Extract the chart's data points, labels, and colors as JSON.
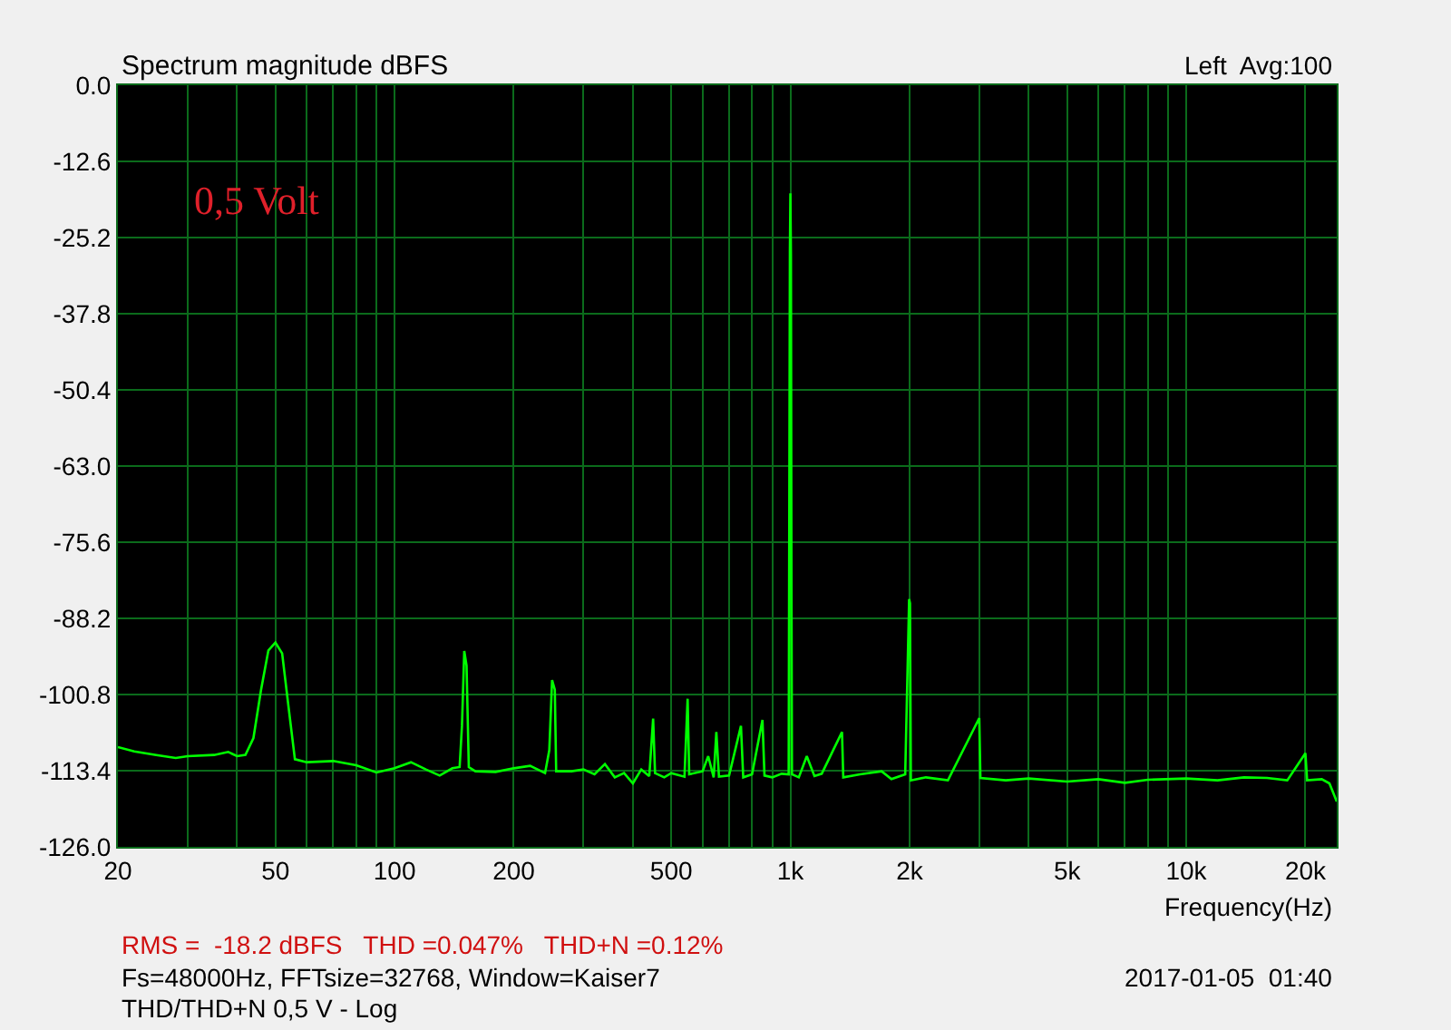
{
  "chart_data": {
    "type": "line",
    "title": "Spectrum magnitude dBFS",
    "subtitle": "Left  Avg:100",
    "xlabel": "Frequency(Hz)",
    "annotations": [
      "0,5 Volt",
      "RMS =  -18.2 dBFS   THD =0.047%   THD+N =0.12%",
      "Fs=48000Hz, FFTsize=32768, Window=Kaiser7",
      "2017-01-05  01:40",
      "THD/THD+N 0,5 V - Log"
    ],
    "log": "x",
    "grid": true,
    "legend": false,
    "marker": "none",
    "line_style": "solid",
    "xlim": [
      20,
      24000
    ],
    "ylim": [
      -126,
      0
    ],
    "xticks": [
      20,
      {
        "value": 30,
        "label": null
      },
      {
        "value": 40,
        "label": null
      },
      50,
      {
        "value": 60,
        "label": null
      },
      {
        "value": 70,
        "label": null
      },
      {
        "value": 80,
        "label": null
      },
      {
        "value": 90,
        "label": null
      },
      100,
      200,
      {
        "value": 300,
        "label": null
      },
      {
        "value": 400,
        "label": null
      },
      500,
      {
        "value": 600,
        "label": null
      },
      {
        "value": 700,
        "label": null
      },
      {
        "value": 800,
        "label": null
      },
      {
        "value": 900,
        "label": null
      },
      {
        "value": 1000,
        "label": "1k"
      },
      {
        "value": 2000,
        "label": "2k"
      },
      {
        "value": 3000,
        "label": null
      },
      {
        "value": 4000,
        "label": null
      },
      {
        "value": 5000,
        "label": "5k"
      },
      {
        "value": 6000,
        "label": null
      },
      {
        "value": 7000,
        "label": null
      },
      {
        "value": 8000,
        "label": null
      },
      {
        "value": 9000,
        "label": null
      },
      {
        "value": 10000,
        "label": "10k"
      },
      {
        "value": 20000,
        "label": "20k"
      }
    ],
    "yticks": [
      {
        "value": 0,
        "label": "0.0"
      },
      -12.6,
      -25.2,
      -37.8,
      -50.4,
      {
        "value": -63,
        "label": "-63.0"
      },
      -75.6,
      -88.2,
      -100.8,
      -113.4,
      {
        "value": -126,
        "label": "-126.0"
      }
    ],
    "series": [
      {
        "color": "#00ff00",
        "x": [
          20,
          22,
          25,
          28,
          30,
          35,
          38,
          40,
          42,
          44,
          46,
          48,
          50,
          52,
          54,
          56,
          60,
          70,
          80,
          90,
          100,
          110,
          120,
          130,
          140,
          146,
          148,
          150,
          152,
          154,
          160,
          180,
          200,
          220,
          240,
          246,
          250,
          254,
          256,
          280,
          300,
          320,
          340,
          360,
          380,
          400,
          420,
          440,
          450,
          455,
          480,
          500,
          540,
          550,
          555,
          600,
          620,
          640,
          650,
          660,
          700,
          750,
          760,
          800,
          850,
          860,
          900,
          950,
          990,
          997,
          1000,
          1003,
          1006,
          1009,
          1050,
          1100,
          1150,
          1200,
          1350,
          1360,
          1500,
          1700,
          1800,
          1950,
          1995,
          2005,
          2015,
          2200,
          2500,
          3000,
          3020,
          3500,
          4000,
          5000,
          6000,
          7000,
          8000,
          10000,
          12000,
          14000,
          16000,
          18000,
          20000,
          20200,
          22000,
          23000,
          23500,
          24000
        ],
        "values": [
          -109.5,
          -110.2,
          -110.8,
          -111.3,
          -111.0,
          -110.8,
          -110.3,
          -111.0,
          -110.8,
          -108,
          -100,
          -93.5,
          -92.2,
          -94,
          -103,
          -111.5,
          -112.0,
          -111.8,
          -112.5,
          -113.7,
          -113.0,
          -112.0,
          -113.2,
          -114.2,
          -113.0,
          -112.8,
          -106,
          -93.6,
          -96,
          -112.8,
          -113.5,
          -113.6,
          -113.0,
          -112.6,
          -113.8,
          -110,
          -98.4,
          -100,
          -113.5,
          -113.5,
          -113.2,
          -114.0,
          -112.3,
          -114.5,
          -113.8,
          -115.5,
          -113.2,
          -114.3,
          -104.8,
          -113.8,
          -114.5,
          -113.8,
          -114.4,
          -101.5,
          -114,
          -113.5,
          -111,
          -114.5,
          -107,
          -114.4,
          -114.2,
          -106,
          -114.5,
          -114,
          -105,
          -114.2,
          -114.5,
          -113.9,
          -114.0,
          -27.6,
          -17.9,
          -28,
          -79,
          -114,
          -114.5,
          -111,
          -114.3,
          -113.9,
          -107,
          -114.5,
          -114,
          -113.5,
          -114.8,
          -114,
          -85,
          -85.7,
          -115,
          -114.5,
          -115,
          -104.7,
          -114.6,
          -115,
          -114.7,
          -115.2,
          -114.8,
          -115.4,
          -114.9,
          -114.7,
          -115,
          -114.5,
          -114.6,
          -115,
          -110.5,
          -115,
          -114.8,
          -115.5,
          -117,
          -118.5
        ]
      }
    ]
  }
}
